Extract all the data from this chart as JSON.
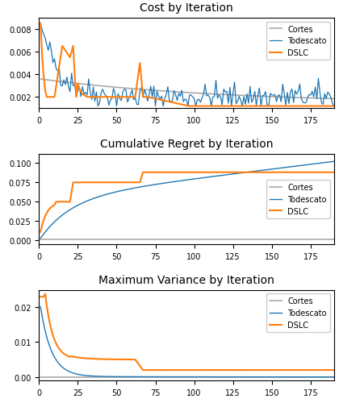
{
  "title1": "Cost by Iteration",
  "title2": "Cumulative Regret by Iteration",
  "title3": "Maximum Variance by Iteration",
  "legend_labels": [
    "Cortes",
    "Todescato",
    "DSLC"
  ],
  "colors": {
    "cortes": "#aaaaaa",
    "todescato": "#1f77b4",
    "dslc": "#ff7f0e"
  },
  "n_points": 190
}
